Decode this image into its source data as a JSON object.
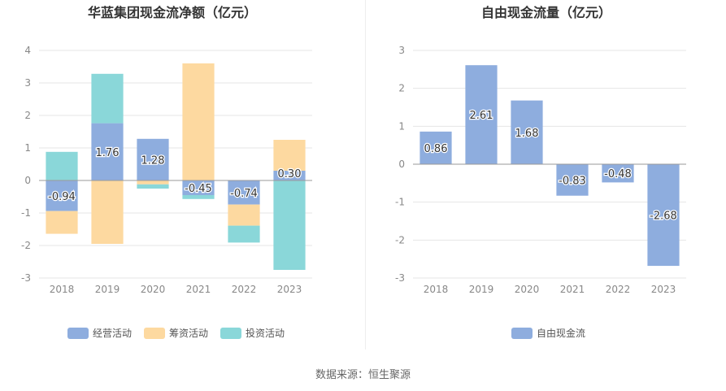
{
  "source_text": "数据来源：恒生聚源",
  "chart_data": [
    {
      "type": "bar",
      "stacked": true,
      "title": "华蓝集团现金流净额（亿元）",
      "categories": [
        "2018",
        "2019",
        "2020",
        "2021",
        "2022",
        "2023"
      ],
      "ylim": [
        -3,
        4
      ],
      "yticks": [
        "4",
        "3",
        "2",
        "1",
        "0",
        "-1",
        "-2",
        "-3"
      ],
      "grid": true,
      "legend_position": "bottom",
      "series": [
        {
          "name": "经营活动",
          "color": "#8eadde",
          "values": [
            -0.94,
            1.76,
            1.28,
            -0.45,
            -0.74,
            0.3
          ],
          "labels": [
            "-0.94",
            "1.76",
            "1.28",
            "-0.45",
            "-0.74",
            "0.30"
          ]
        },
        {
          "name": "筹资活动",
          "color": "#fdd9a0",
          "values": [
            -0.7,
            -1.95,
            -0.12,
            3.6,
            -0.65,
            0.95
          ]
        },
        {
          "name": "投资活动",
          "color": "#8ad7d9",
          "values": [
            0.88,
            1.52,
            -0.13,
            -0.12,
            -0.52,
            -2.75
          ]
        }
      ]
    },
    {
      "type": "bar",
      "title": "自由现金流量（亿元）",
      "categories": [
        "2018",
        "2019",
        "2020",
        "2021",
        "2022",
        "2023"
      ],
      "ylim": [
        -3,
        3
      ],
      "yticks": [
        "3",
        "2",
        "1",
        "0",
        "-1",
        "-2",
        "-3"
      ],
      "grid": true,
      "legend_position": "bottom",
      "series": [
        {
          "name": "自由现金流",
          "color": "#8eadde",
          "values": [
            0.86,
            2.61,
            1.68,
            -0.83,
            -0.48,
            -2.68
          ],
          "labels": [
            "0.86",
            "2.61",
            "1.68",
            "-0.83",
            "-0.48",
            "-2.68"
          ]
        }
      ]
    }
  ]
}
